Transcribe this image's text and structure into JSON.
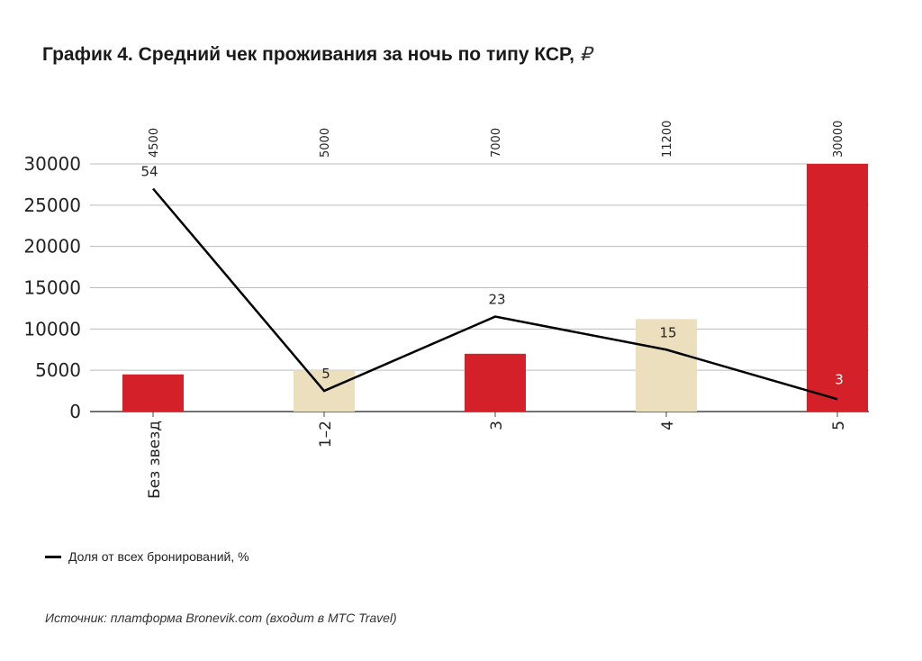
{
  "chart_data": {
    "type": "bar",
    "title": "График 4. Средний чек проживания за ночь по типу КСР,",
    "title_unit": "₽",
    "categories": [
      "Без звезд",
      "1–2",
      "3",
      "4",
      "5"
    ],
    "ylim": [
      0,
      30000
    ],
    "yticks": [
      0,
      5000,
      10000,
      15000,
      20000,
      25000,
      30000
    ],
    "grid": true,
    "bars": {
      "values": [
        4500,
        5000,
        7000,
        11200,
        30000
      ],
      "colors": [
        "#d42028",
        "#ecdfbd",
        "#d42028",
        "#ecdfbd",
        "#d42028"
      ]
    },
    "line_series": {
      "name": "Доля от всех бронирований, %",
      "values": [
        54,
        5,
        23,
        15,
        3
      ],
      "color": "#000000",
      "label_colors": [
        "#222222",
        "#222222",
        "#222222",
        "#222222",
        "#ffffff"
      ]
    },
    "legend_position": "bottom-left"
  },
  "source": "Источник: платформа Bronevik.com (входит в МТС Travel)"
}
